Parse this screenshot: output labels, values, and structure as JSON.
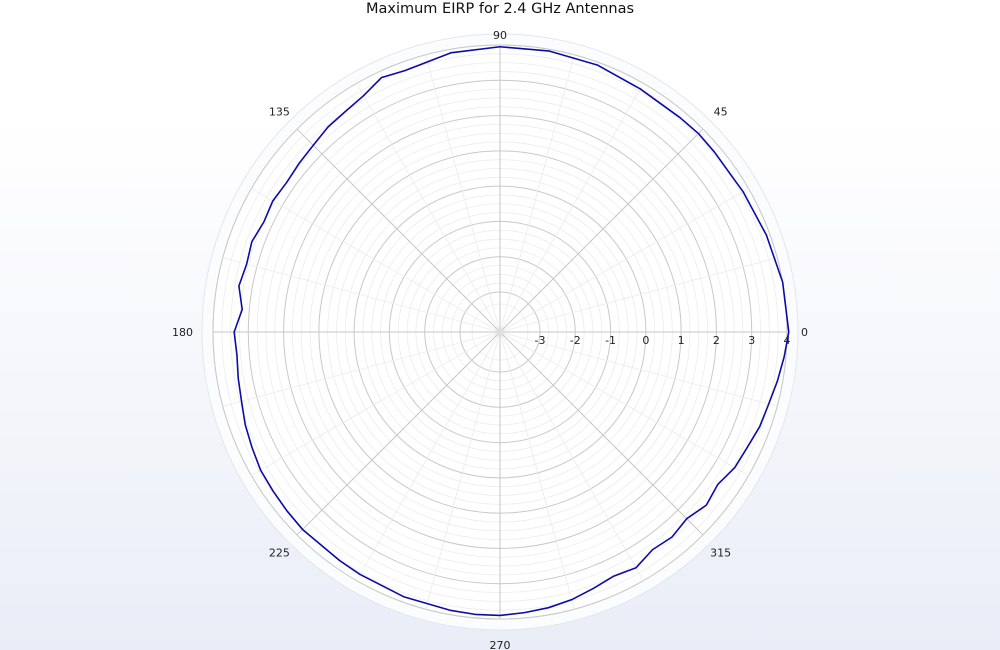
{
  "chart_data": {
    "type": "polar-line",
    "title": "Maximum EIRP for 2.4 GHz Antennas",
    "radial_ticks": [
      "-3",
      "-2",
      "-1",
      "0",
      "1",
      "2",
      "3",
      "4"
    ],
    "radial_range": [
      -3,
      4
    ],
    "angular_ticks": [
      "0",
      "45",
      "90",
      "135",
      "180",
      "225",
      "270",
      "315"
    ],
    "grid": true,
    "series": [
      {
        "color": "#0b0ba8",
        "angles": [
          0,
          10,
          20,
          30,
          40,
          45,
          50,
          60,
          70,
          80,
          90,
          100,
          110,
          115,
          120,
          125,
          130,
          135,
          140,
          145,
          150,
          155,
          160,
          165,
          170,
          175,
          180,
          185,
          190,
          195,
          200,
          205,
          210,
          215,
          220,
          225,
          230,
          235,
          240,
          250,
          260,
          265,
          270,
          275,
          280,
          285,
          290,
          295,
          300,
          305,
          310,
          315,
          320,
          325,
          330,
          335,
          340,
          345,
          350,
          355,
          360
        ],
        "values": [
          4.05,
          4.0,
          3.9,
          3.82,
          3.8,
          3.82,
          3.8,
          3.82,
          3.92,
          3.95,
          3.95,
          3.9,
          3.75,
          3.82,
          3.6,
          3.5,
          3.45,
          3.35,
          3.3,
          3.25,
          3.3,
          3.25,
          3.35,
          3.3,
          3.38,
          3.2,
          3.4,
          3.35,
          3.4,
          3.45,
          3.55,
          3.62,
          3.7,
          3.72,
          3.75,
          3.78,
          3.75,
          3.78,
          3.8,
          3.85,
          3.88,
          3.9,
          3.9,
          3.85,
          3.8,
          3.72,
          3.6,
          3.5,
          3.58,
          3.4,
          3.45,
          3.35,
          3.5,
          3.4,
          3.55,
          3.6,
          3.7,
          3.75,
          3.85,
          3.95,
          4.05
        ]
      }
    ]
  }
}
